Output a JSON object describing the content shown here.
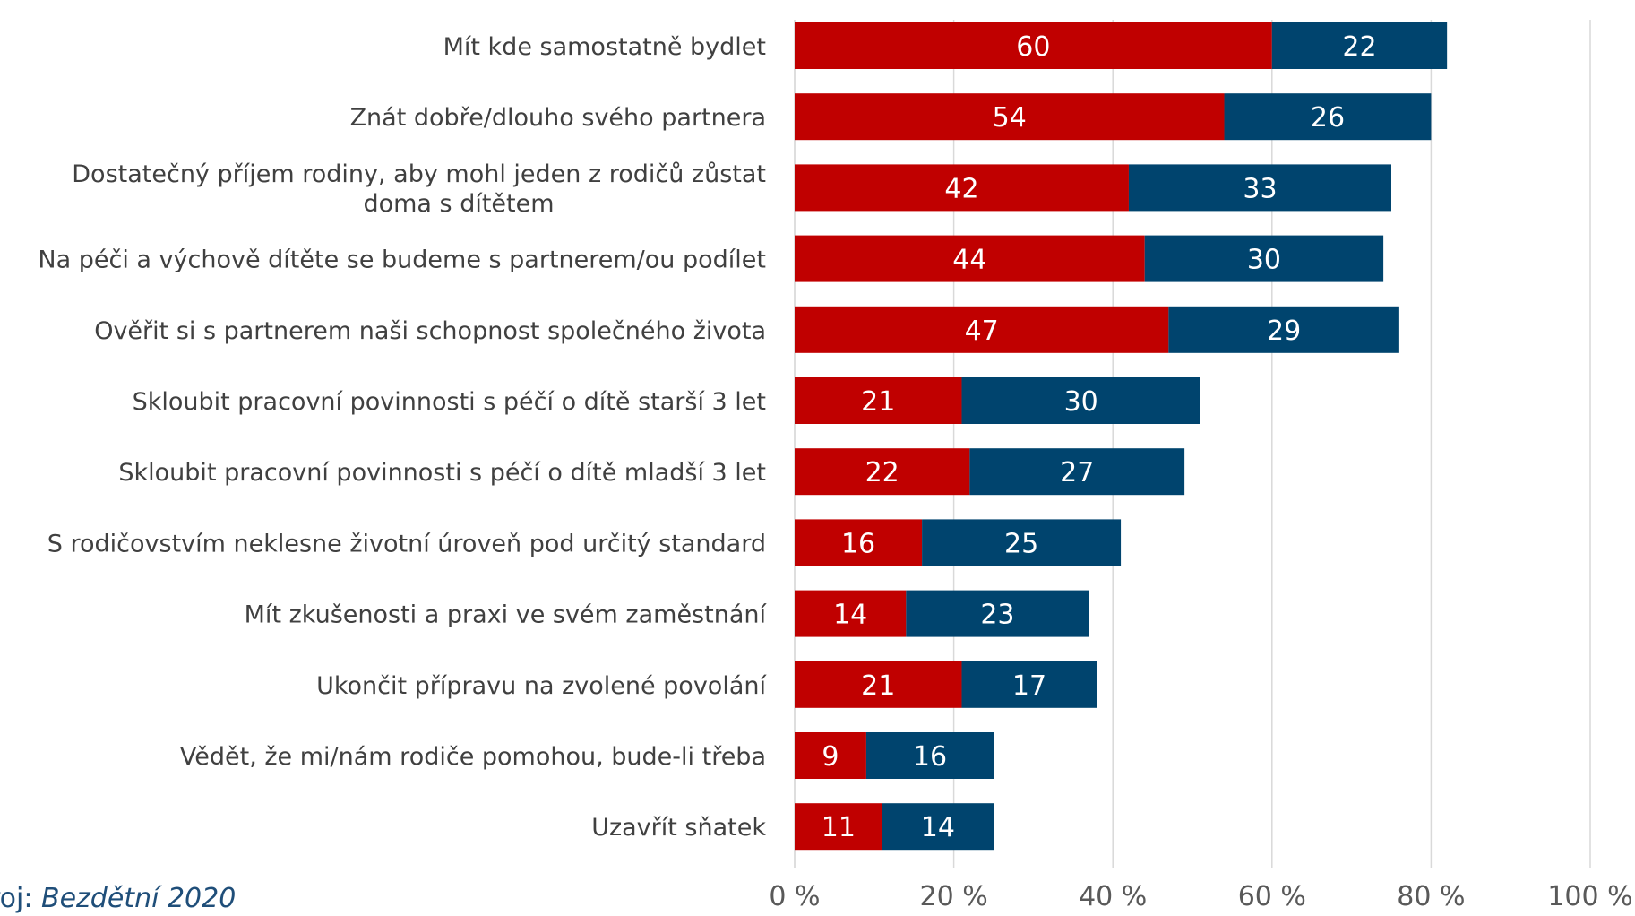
{
  "chart_data": {
    "type": "bar",
    "orientation": "horizontal",
    "stacked": true,
    "categories": [
      "Mít kde samostatně bydlet",
      "Znát dobře/dlouho svého partnera",
      "Dostatečný příjem rodiny, aby mohl jeden z rodičů zůstat doma s dítětem",
      "Na péči a výchově dítěte se budeme s partnerem/ou podílet",
      "Ověřit si s partnerem naši schopnost společného života",
      "Skloubit pracovní povinnosti s péčí o dítě starší 3 let",
      "Skloubit pracovní povinnosti s péčí o dítě mladší 3 let",
      "S rodičovstvím neklesne životní úroveň pod určitý standard",
      "Mít zkušenosti a praxi ve svém zaměstnání",
      "Ukončit přípravu na zvolené povolání",
      "Vědět, že mi/nám rodiče pomohou, bude-li třeba",
      "Uzavřít sňatek"
    ],
    "category_lines": [
      [
        "Mít kde samostatně bydlet"
      ],
      [
        "Znát dobře/dlouho svého partnera"
      ],
      [
        "Dostatečný příjem rodiny, aby mohl jeden z rodičů zůstat",
        "doma s dítětem"
      ],
      [
        "Na péči a výchově dítěte se budeme s partnerem/ou podílet"
      ],
      [
        "Ověřit si s partnerem naši schopnost společného života"
      ],
      [
        "Skloubit pracovní povinnosti s péčí o dítě starší 3 let"
      ],
      [
        "Skloubit pracovní povinnosti s péčí o dítě mladší 3 let"
      ],
      [
        "S rodičovstvím neklesne životní úroveň pod určitý standard"
      ],
      [
        "Mít zkušenosti a praxi ve svém zaměstnání"
      ],
      [
        "Ukončit přípravu na zvolené povolání"
      ],
      [
        "Vědět, že mi/nám rodiče pomohou, bude-li třeba"
      ],
      [
        "Uzavřít sňatek"
      ]
    ],
    "series": [
      {
        "color": "#c00000",
        "values": [
          60,
          54,
          42,
          44,
          47,
          21,
          22,
          16,
          14,
          21,
          9,
          11
        ]
      },
      {
        "color": "#00446e",
        "values": [
          22,
          26,
          33,
          30,
          29,
          30,
          27,
          25,
          23,
          17,
          16,
          14
        ]
      }
    ],
    "xlim": [
      0,
      100
    ],
    "x_ticks": [
      "0 %",
      "20 %",
      "40 %",
      "60 %",
      "80 %",
      "100 %"
    ],
    "grid": true,
    "legend": "none"
  },
  "source": {
    "prefix": "roj: ",
    "title": "Bezdětní 2020"
  }
}
